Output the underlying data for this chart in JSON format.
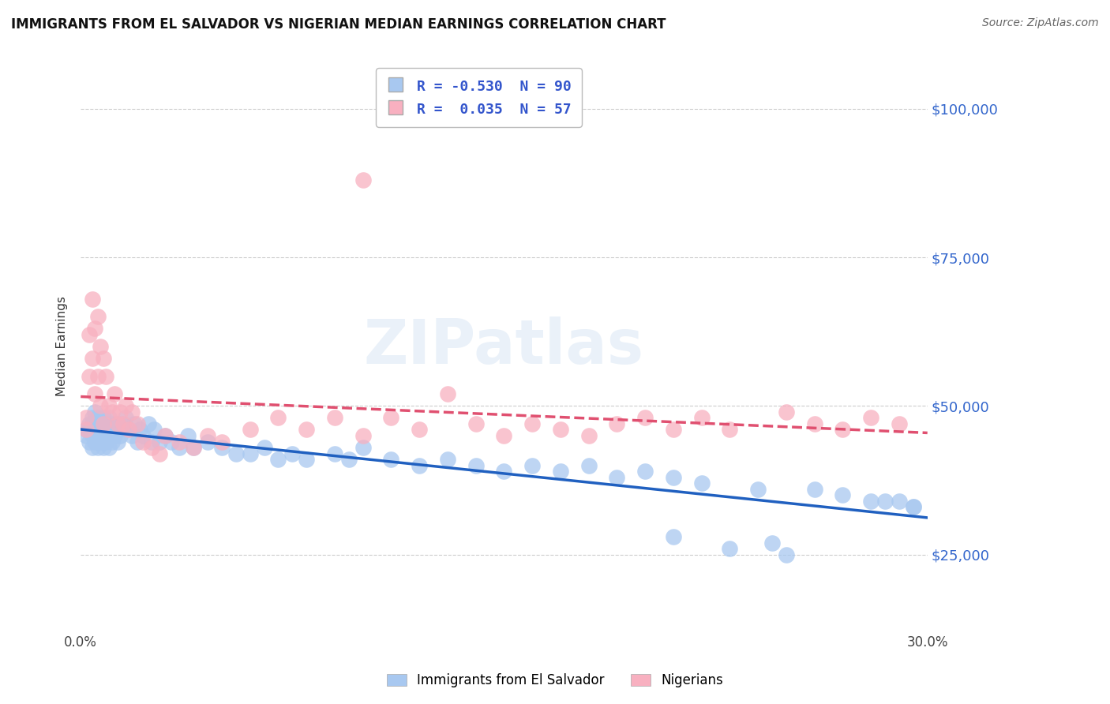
{
  "title": "IMMIGRANTS FROM EL SALVADOR VS NIGERIAN MEDIAN EARNINGS CORRELATION CHART",
  "source": "Source: ZipAtlas.com",
  "ylabel": "Median Earnings",
  "ytick_labels": [
    "$25,000",
    "$50,000",
    "$75,000",
    "$100,000"
  ],
  "ytick_values": [
    25000,
    50000,
    75000,
    100000
  ],
  "xmin": 0.0,
  "xmax": 0.3,
  "ymin": 12000,
  "ymax": 108000,
  "legend_label1": "Immigrants from El Salvador",
  "legend_label2": "Nigerians",
  "color_blue": "#a8c8f0",
  "color_pink": "#f8b0c0",
  "trendline_blue_color": "#2060c0",
  "trendline_pink_color": "#e05070",
  "watermark": "ZIPatlas",
  "grid_color": "#cccccc",
  "R_blue": -0.53,
  "N_blue": 90,
  "R_pink": 0.035,
  "N_pink": 57,
  "blue_x": [
    0.002,
    0.002,
    0.003,
    0.003,
    0.003,
    0.004,
    0.004,
    0.004,
    0.004,
    0.005,
    0.005,
    0.005,
    0.005,
    0.005,
    0.006,
    0.006,
    0.006,
    0.006,
    0.007,
    0.007,
    0.007,
    0.008,
    0.008,
    0.008,
    0.009,
    0.009,
    0.009,
    0.01,
    0.01,
    0.01,
    0.011,
    0.011,
    0.012,
    0.012,
    0.013,
    0.013,
    0.014,
    0.014,
    0.015,
    0.016,
    0.017,
    0.018,
    0.019,
    0.02,
    0.021,
    0.022,
    0.024,
    0.025,
    0.026,
    0.028,
    0.03,
    0.032,
    0.035,
    0.038,
    0.04,
    0.045,
    0.05,
    0.055,
    0.06,
    0.065,
    0.07,
    0.075,
    0.08,
    0.09,
    0.095,
    0.1,
    0.11,
    0.12,
    0.13,
    0.14,
    0.15,
    0.16,
    0.17,
    0.18,
    0.19,
    0.2,
    0.21,
    0.22,
    0.24,
    0.26,
    0.27,
    0.28,
    0.285,
    0.29,
    0.295,
    0.295,
    0.245,
    0.25,
    0.23,
    0.21
  ],
  "blue_y": [
    46000,
    45000,
    47000,
    44000,
    46000,
    48000,
    45000,
    47000,
    43000,
    49000,
    46000,
    44000,
    47000,
    45000,
    48000,
    44000,
    46000,
    43000,
    47000,
    45000,
    44000,
    48000,
    45000,
    43000,
    47000,
    44000,
    46000,
    48000,
    45000,
    43000,
    47000,
    44000,
    46000,
    45000,
    47000,
    44000,
    46000,
    45000,
    47000,
    48000,
    46000,
    45000,
    47000,
    44000,
    46000,
    45000,
    47000,
    44000,
    46000,
    44000,
    45000,
    44000,
    43000,
    45000,
    43000,
    44000,
    43000,
    42000,
    42000,
    43000,
    41000,
    42000,
    41000,
    42000,
    41000,
    43000,
    41000,
    40000,
    41000,
    40000,
    39000,
    40000,
    39000,
    40000,
    38000,
    39000,
    38000,
    37000,
    36000,
    36000,
    35000,
    34000,
    34000,
    34000,
    33000,
    33000,
    27000,
    25000,
    26000,
    28000
  ],
  "pink_x": [
    0.002,
    0.002,
    0.003,
    0.003,
    0.004,
    0.004,
    0.005,
    0.005,
    0.006,
    0.006,
    0.007,
    0.007,
    0.008,
    0.008,
    0.009,
    0.01,
    0.011,
    0.012,
    0.013,
    0.014,
    0.015,
    0.016,
    0.017,
    0.018,
    0.02,
    0.022,
    0.025,
    0.028,
    0.03,
    0.035,
    0.04,
    0.045,
    0.05,
    0.06,
    0.07,
    0.08,
    0.09,
    0.1,
    0.11,
    0.12,
    0.13,
    0.14,
    0.15,
    0.16,
    0.17,
    0.18,
    0.19,
    0.2,
    0.21,
    0.22,
    0.23,
    0.25,
    0.26,
    0.27,
    0.28,
    0.29,
    0.1
  ],
  "pink_y": [
    46000,
    48000,
    62000,
    55000,
    68000,
    58000,
    63000,
    52000,
    65000,
    55000,
    60000,
    50000,
    58000,
    47000,
    55000,
    50000,
    49000,
    52000,
    47000,
    49000,
    47000,
    50000,
    46000,
    49000,
    47000,
    44000,
    43000,
    42000,
    45000,
    44000,
    43000,
    45000,
    44000,
    46000,
    48000,
    46000,
    48000,
    45000,
    48000,
    46000,
    52000,
    47000,
    45000,
    47000,
    46000,
    45000,
    47000,
    48000,
    46000,
    48000,
    46000,
    49000,
    47000,
    46000,
    48000,
    47000,
    88000
  ]
}
